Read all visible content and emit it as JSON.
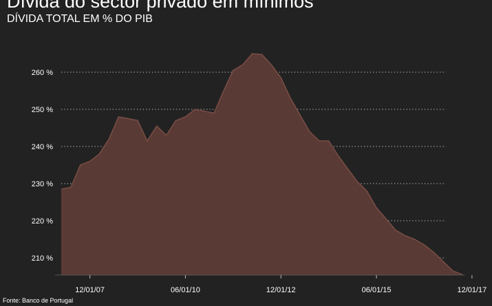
{
  "header": {
    "title": "Dívida do sector privado em mínimos",
    "subtitle": "DÍVIDA TOTAL EM % DO PIB"
  },
  "footer": {
    "source": "Fonte: Banco de Portugal"
  },
  "colors": {
    "background": "#222222",
    "area_fill": "#5a3a35",
    "area_line": "#7a4e46",
    "gridline": "#b0b0b0",
    "text": "#ffffff"
  },
  "chart_data": {
    "type": "area",
    "title": "Dívida do sector privado em mínimos",
    "subtitle": "DÍVIDA TOTAL EM % DO PIB",
    "xlabel": "",
    "ylabel": "",
    "grid": "horizontal dotted",
    "legend": "none",
    "ylim": [
      205,
      265
    ],
    "y_ticks": [
      210,
      220,
      230,
      240,
      250,
      260
    ],
    "y_tick_labels": [
      "210 %",
      "220 %",
      "230 %",
      "240 %",
      "250 %",
      "260 %"
    ],
    "x_tick_labels": [
      "12/01/07",
      "06/01/10",
      "12/01/12",
      "06/01/15",
      "12/01/17"
    ],
    "x_tick_index": [
      3,
      13,
      23,
      33,
      43
    ],
    "series": [
      {
        "values": [
          228.5,
          229,
          235,
          236,
          238,
          242,
          248,
          247.5,
          247,
          241.5,
          245.5,
          243,
          247,
          248,
          250,
          249.5,
          249,
          255,
          260.5,
          262,
          265,
          264.8,
          262,
          258.5,
          253,
          248.5,
          244,
          241.5,
          241.5,
          237.5,
          234,
          230.5,
          228,
          223.5,
          220.5,
          217.5,
          216,
          215,
          213.5,
          211.5,
          209,
          206.5,
          205.5
        ]
      }
    ]
  }
}
